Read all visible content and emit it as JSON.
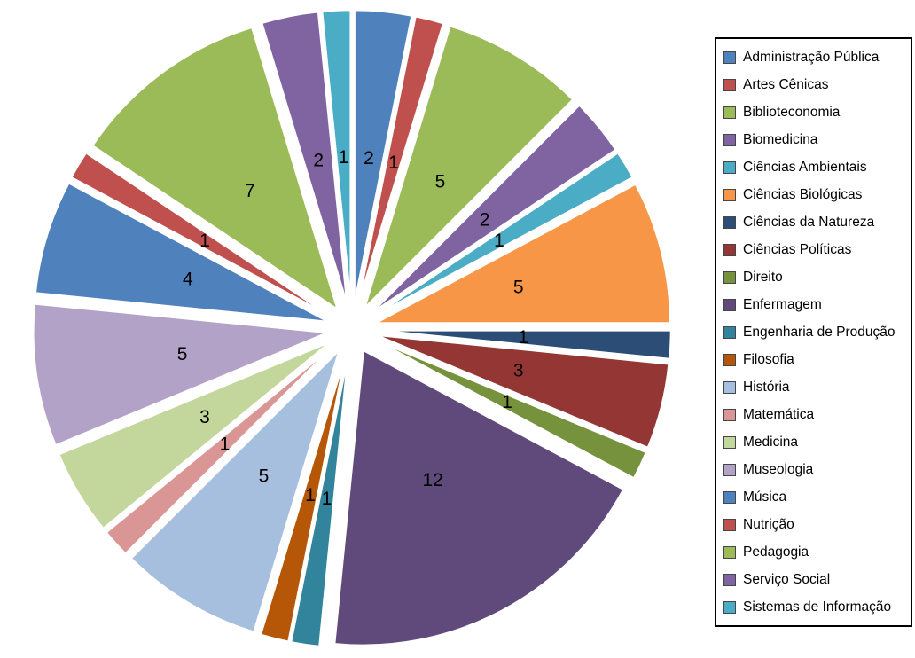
{
  "chart_data": {
    "type": "pie",
    "title": "",
    "legend_position": "right",
    "exploded": true,
    "data_labels": "values",
    "total": 64,
    "categories": [
      "Administração Pública",
      "Artes Cênicas",
      "Biblioteconomia",
      "Biomedicina",
      "Ciências Ambientais",
      "Ciências Biológicas",
      "Ciências da Natureza",
      "Ciências Políticas",
      "Direito",
      "Enfermagem",
      "Engenharia de Produção",
      "Filosofia",
      "História",
      "Matemática",
      "Medicina",
      "Museologia",
      "Música",
      "Nutrição",
      "Pedagogia",
      "Serviço Social",
      "Sistemas de Informação"
    ],
    "values": [
      2,
      1,
      5,
      2,
      1,
      5,
      1,
      3,
      1,
      12,
      1,
      1,
      5,
      1,
      3,
      5,
      4,
      1,
      7,
      2,
      1
    ],
    "colors": [
      "#4F81BD",
      "#C0504D",
      "#9BBB59",
      "#8064A2",
      "#4BACC6",
      "#F79646",
      "#2C4D75",
      "#943634",
      "#76923C",
      "#604A7B",
      "#31849B",
      "#B65708",
      "#A6BFDE",
      "#D99694",
      "#C3D69B",
      "#B3A2C7",
      "#4F81BD",
      "#C0504D",
      "#9BBB59",
      "#8064A2",
      "#4BACC6"
    ]
  }
}
